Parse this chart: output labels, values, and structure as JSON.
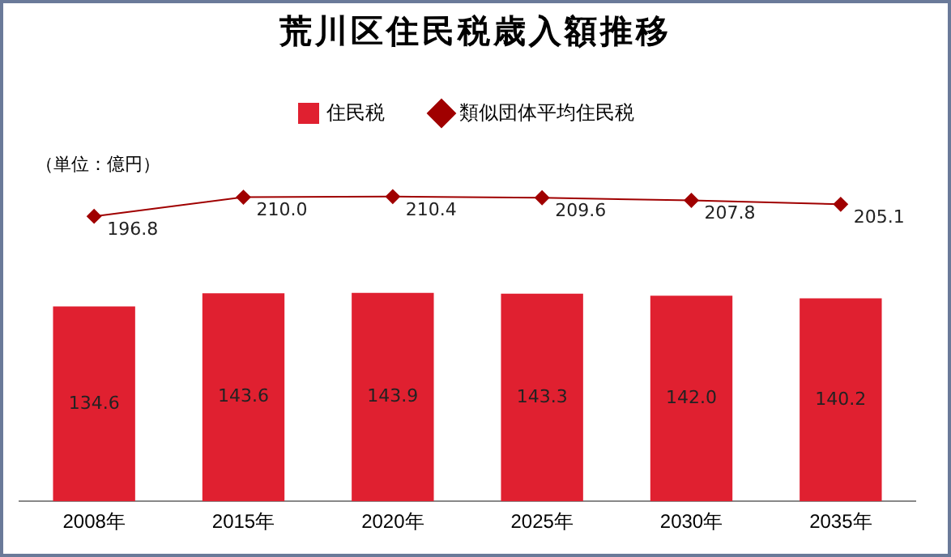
{
  "chart_data": {
    "type": "bar",
    "title": "荒川区住民税歳入額推移",
    "annotations": [
      "（単位：億円）"
    ],
    "categories": [
      "2008年",
      "2015年",
      "2020年",
      "2025年",
      "2030年",
      "2035年"
    ],
    "series": [
      {
        "name": "住民税",
        "color": "#e02030",
        "values": [
          134.6,
          143.6,
          143.9,
          143.3,
          142.0,
          140.2
        ],
        "value_labels": [
          "134.6",
          "143.6",
          "143.9",
          "143.3",
          "142.0",
          "140.2"
        ]
      },
      {
        "name": "類似団体平均住民税",
        "type": "line",
        "color": "#a00000",
        "values": [
          196.8,
          210.0,
          210.4,
          209.6,
          207.8,
          205.1
        ],
        "value_labels": [
          "196.8",
          "210.0",
          "210.4",
          "209.6",
          "207.8",
          "205.1"
        ]
      }
    ],
    "legend": "top",
    "marker": "diamond",
    "grid": false,
    "tick_labels": "x"
  }
}
